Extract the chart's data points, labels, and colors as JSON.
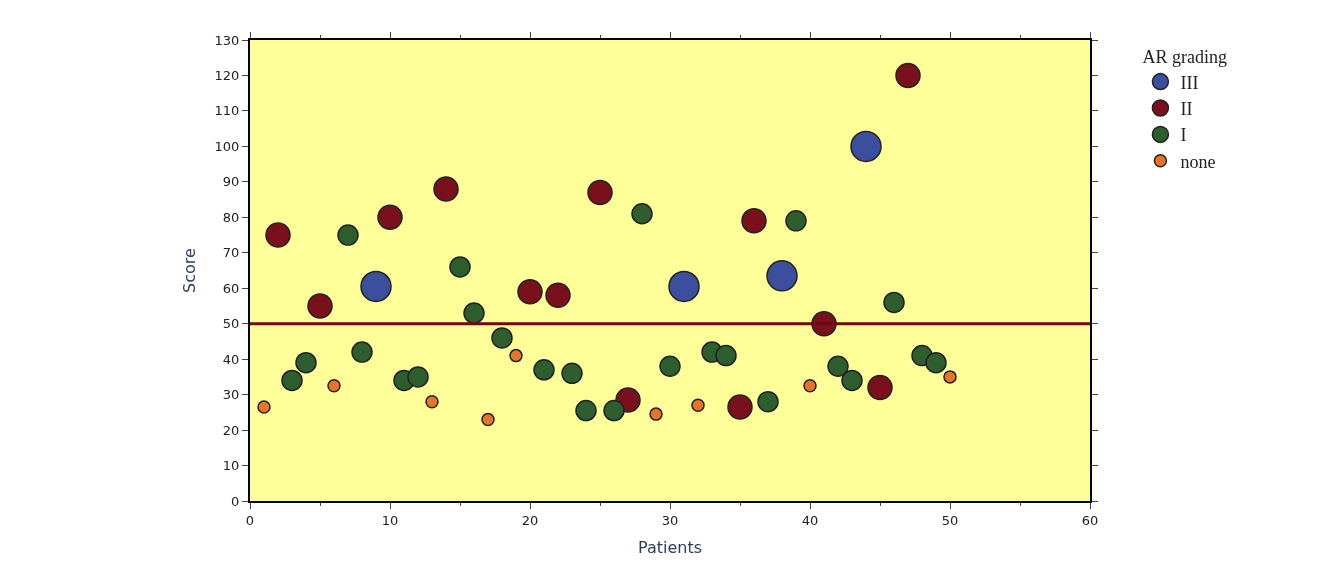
{
  "chart_data": {
    "type": "scatter",
    "xlabel": "Patients",
    "ylabel": "Score",
    "legend_title": "AR grading",
    "legend": "right",
    "grid": false,
    "marker": "circle",
    "xlim": [
      0,
      60
    ],
    "xticks": [
      0,
      10,
      20,
      30,
      40,
      50,
      60
    ],
    "ylim": [
      0,
      130
    ],
    "yticks": [
      0,
      10,
      20,
      30,
      40,
      50,
      60,
      70,
      80,
      90,
      100,
      110,
      120,
      130
    ],
    "ref_lines": [
      {
        "axis": "y",
        "value": 50,
        "color": "#6b0a14"
      }
    ],
    "series": [
      {
        "name": "III",
        "color": "#3b4f9e",
        "x": [
          9,
          31,
          38,
          44
        ],
        "values": [
          60.5,
          60.5,
          63.5,
          100
        ]
      },
      {
        "name": "II",
        "color": "#7a101c",
        "x": [
          2,
          5,
          10,
          14,
          20,
          22,
          25,
          27,
          35,
          36,
          41,
          45,
          47
        ],
        "values": [
          75,
          55,
          80,
          88,
          59,
          58,
          87,
          28.5,
          26.5,
          79,
          50,
          32,
          120
        ]
      },
      {
        "name": "I",
        "color": "#2e5e2e",
        "x": [
          3,
          4,
          7,
          8,
          11,
          12,
          15,
          16,
          18,
          21,
          23,
          24,
          26,
          28,
          30,
          33,
          34,
          37,
          39,
          42,
          43,
          46,
          48,
          49
        ],
        "values": [
          34,
          39,
          75,
          42,
          34,
          35,
          66,
          53,
          46,
          37,
          36,
          25.5,
          25.5,
          81,
          38,
          42,
          41,
          28,
          79,
          38,
          34,
          56,
          41,
          39
        ]
      },
      {
        "name": "none",
        "color": "#e8742a",
        "x": [
          1,
          6,
          13,
          17,
          19,
          29,
          32,
          40,
          50
        ],
        "values": [
          26.5,
          32.5,
          28,
          23,
          41,
          24.5,
          27,
          32.5,
          35
        ]
      }
    ]
  }
}
